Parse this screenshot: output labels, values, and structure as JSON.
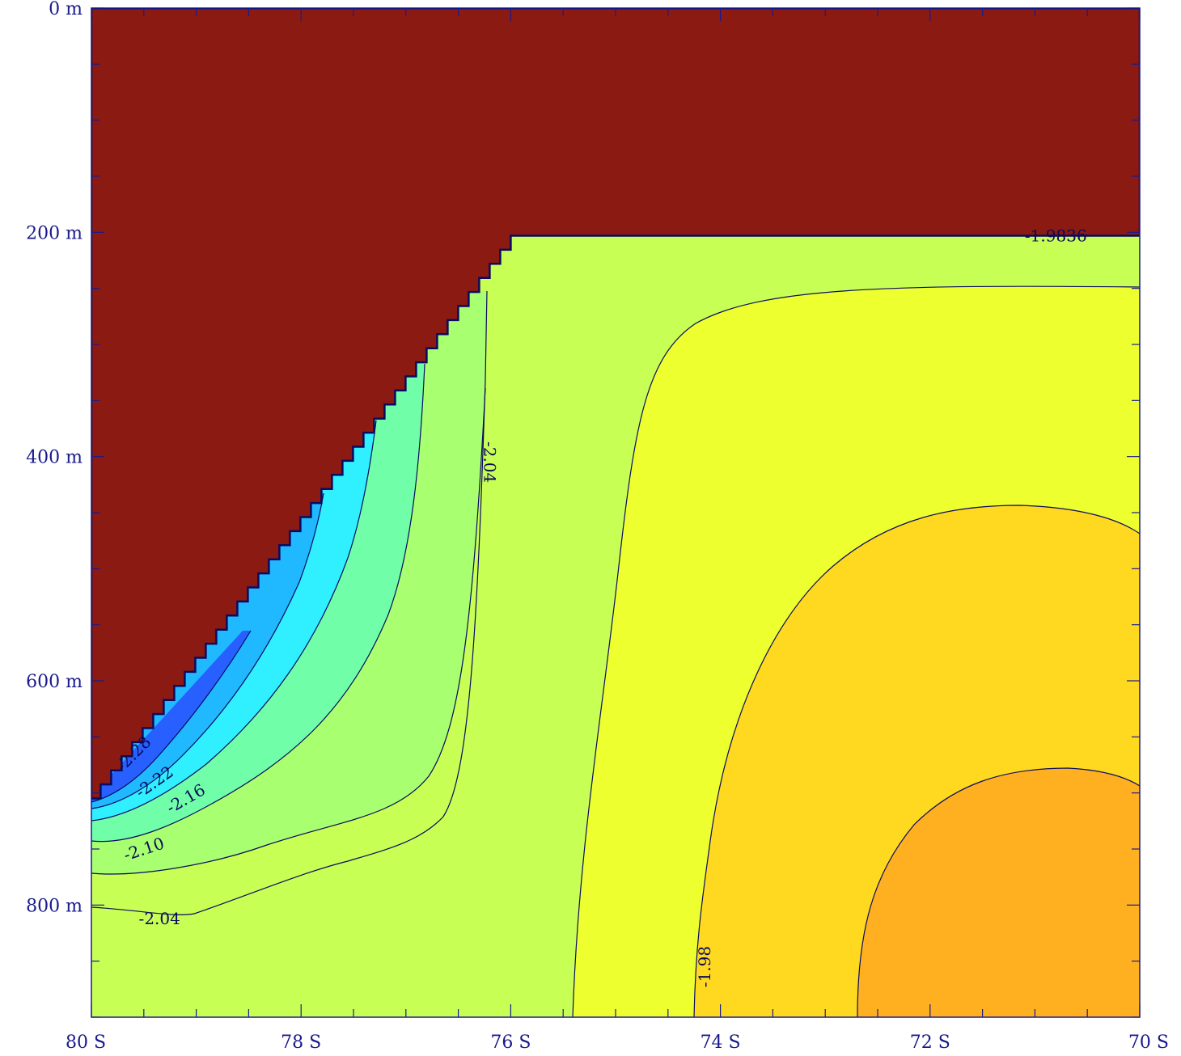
{
  "chart_data": {
    "type": "contour",
    "title": "",
    "xlabel": "",
    "ylabel": "",
    "x_axis": {
      "range": [
        80,
        70
      ],
      "unit": "S",
      "ticks": [
        {
          "value": 80,
          "label": "80  S"
        },
        {
          "value": 78,
          "label": "78  S"
        },
        {
          "value": 76,
          "label": "76  S"
        },
        {
          "value": 74,
          "label": "74  S"
        },
        {
          "value": 72,
          "label": "72  S"
        },
        {
          "value": 70,
          "label": "70  S"
        }
      ]
    },
    "y_axis": {
      "range": [
        0,
        900
      ],
      "unit": "m",
      "inverted": true,
      "ticks": [
        {
          "value": 0,
          "label": "0  m"
        },
        {
          "value": 200,
          "label": "200  m"
        },
        {
          "value": 400,
          "label": "400  m"
        },
        {
          "value": 600,
          "label": "600  m"
        },
        {
          "value": 800,
          "label": "800  m"
        }
      ]
    },
    "land_mask_color": "#8a1a12",
    "contour_labels": [
      {
        "text": "-2.28",
        "lat": 79.6,
        "depth": 665,
        "rotate": -45
      },
      {
        "text": "-2.22",
        "lat": 79.4,
        "depth": 690,
        "rotate": -35
      },
      {
        "text": "-2.16",
        "lat": 79.1,
        "depth": 705,
        "rotate": -30
      },
      {
        "text": "-2.10",
        "lat": 79.5,
        "depth": 750,
        "rotate": -18
      },
      {
        "text": "-2.04",
        "lat": 79.35,
        "depth": 812,
        "rotate": 0
      },
      {
        "text": "-2.04",
        "lat": 76.2,
        "depth": 405,
        "rotate": 90
      },
      {
        "text": "-1.98",
        "lat": 74.15,
        "depth": 855,
        "rotate": -90
      },
      {
        "text": "-1.9836",
        "lat": 70.8,
        "depth": 203,
        "rotate": 0
      }
    ],
    "levels": [
      {
        "value": -2.31,
        "color": "#2020e8"
      },
      {
        "value": -2.28,
        "color": "#2a50ff"
      },
      {
        "value": -2.25,
        "color": "#2a7cff"
      },
      {
        "value": -2.22,
        "color": "#20a8ff"
      },
      {
        "value": -2.19,
        "color": "#1ad8ff"
      },
      {
        "value": -2.16,
        "color": "#20ffff"
      },
      {
        "value": -2.13,
        "color": "#40ffd8"
      },
      {
        "value": -2.1,
        "color": "#5cffb0"
      },
      {
        "value": -2.07,
        "color": "#80ff90"
      },
      {
        "value": -2.04,
        "color": "#a8ff70"
      },
      {
        "value": -2.01,
        "color": "#ccff55"
      },
      {
        "value": -1.98,
        "color": "#eeff30"
      },
      {
        "value": -1.95,
        "color": "#ffd020"
      },
      {
        "value": -1.92,
        "color": "#ffaa20"
      }
    ]
  }
}
